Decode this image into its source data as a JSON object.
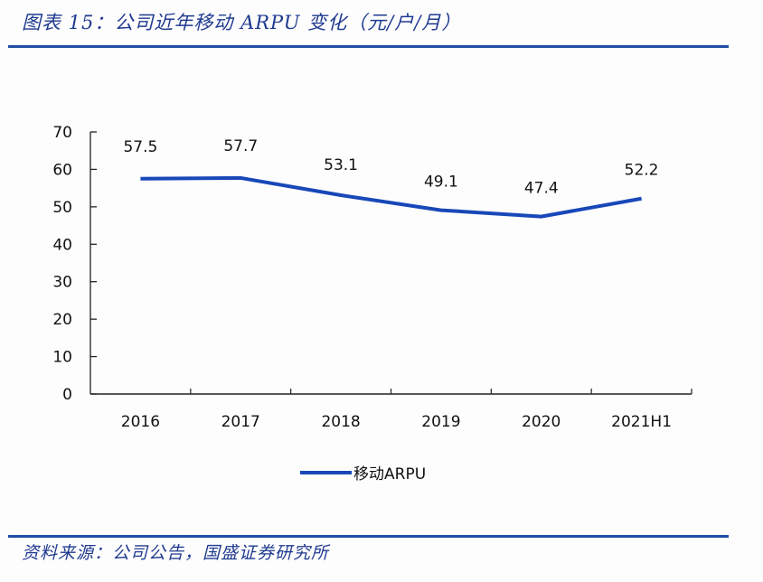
{
  "header": {
    "title": "图表 15：公司近年移动 ARPU 变化（元/户/月）"
  },
  "footer": {
    "source": "资料来源：公司公告，国盛证券研究所"
  },
  "legend": {
    "items": [
      {
        "label": "移动ARPU",
        "color": "#1848b8"
      }
    ]
  },
  "colors": {
    "series": "#1848b8",
    "rule": "#1f4ea3",
    "title": "#1f3a8f"
  },
  "chart_data": {
    "type": "line",
    "title": "公司近年移动 ARPU 变化（元/户/月）",
    "xlabel": "",
    "ylabel": "",
    "categories": [
      "2016",
      "2017",
      "2018",
      "2019",
      "2020",
      "2021H1"
    ],
    "series": [
      {
        "name": "移动ARPU",
        "values": [
          57.5,
          57.7,
          53.1,
          49.1,
          47.4,
          52.2
        ]
      }
    ],
    "data_labels": [
      "57.5",
      "57.7",
      "53.1",
      "49.1",
      "47.4",
      "52.2"
    ],
    "ylim": [
      0,
      70
    ],
    "yticks": [
      0,
      10,
      20,
      30,
      40,
      50,
      60,
      70
    ],
    "grid": false,
    "legend_position": "bottom"
  }
}
